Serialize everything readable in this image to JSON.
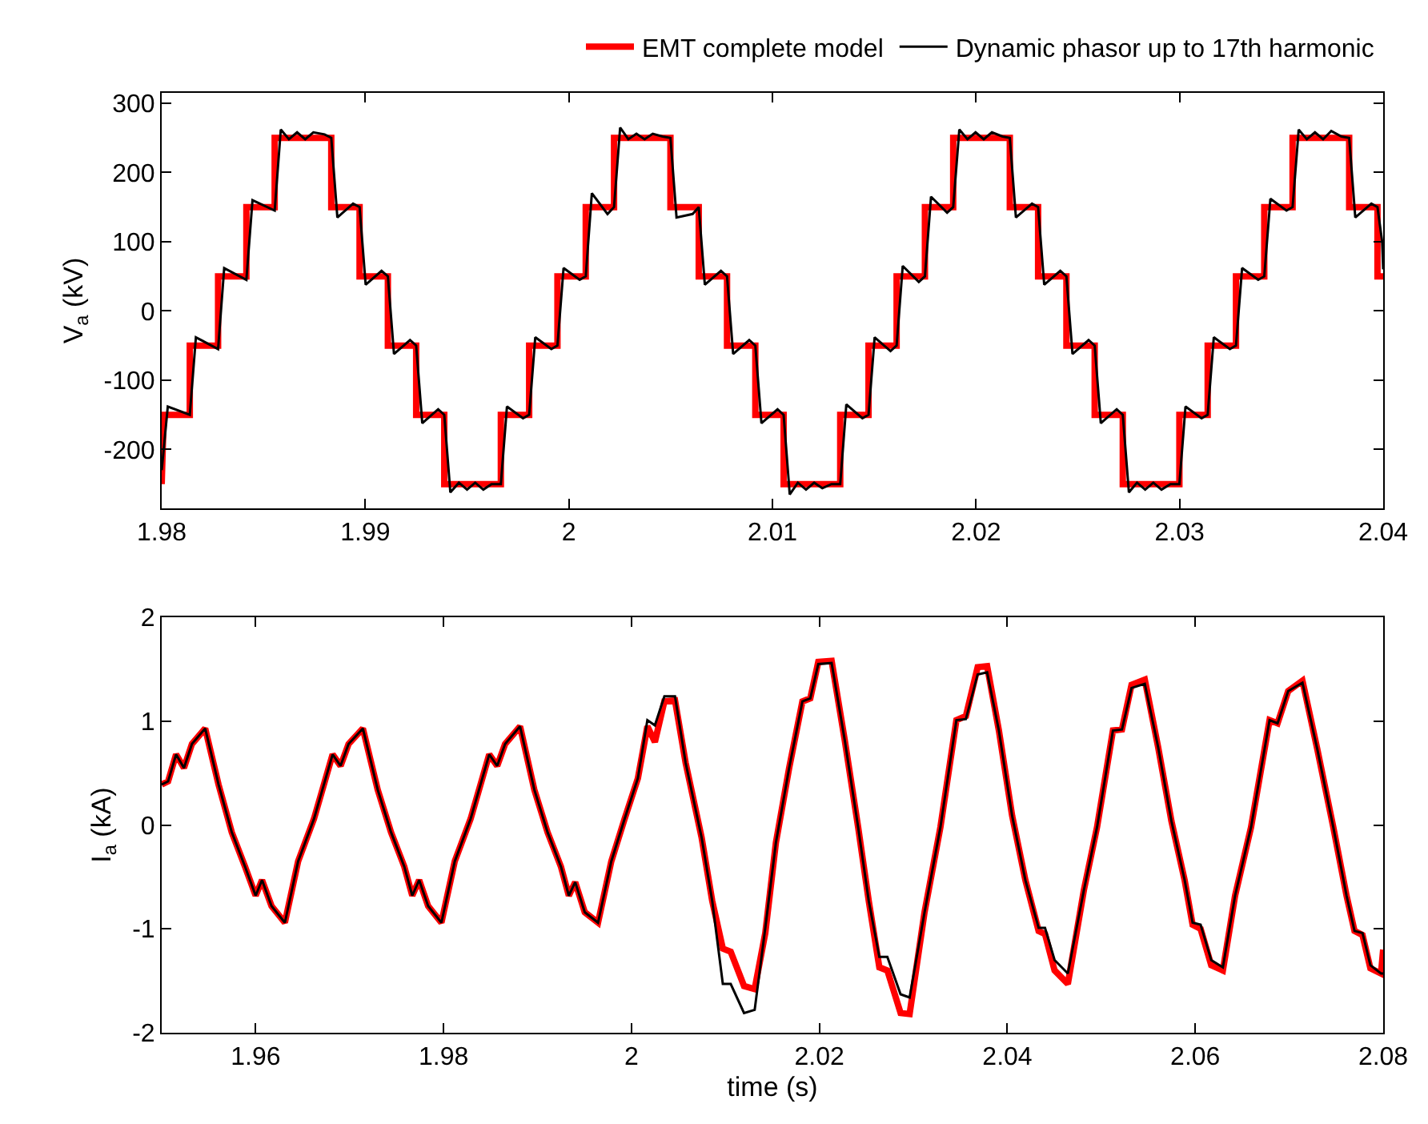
{
  "chart_data": [
    {
      "type": "line",
      "ylabel": "V$_{a}$ (kV)",
      "xlim": [
        1.98,
        2.04
      ],
      "xticks": [
        1.98,
        1.99,
        2,
        2.01,
        2.02,
        2.03,
        2.04
      ],
      "ylim": [
        -285,
        315
      ],
      "yticks": [
        -200,
        -100,
        0,
        100,
        200,
        300
      ],
      "legend": "top",
      "marker": "none",
      "line_style": "solid",
      "series": [
        {
          "name": "EMT complete model",
          "color": "#ff0000",
          "x": [
            1.98,
            1.9801,
            1.98138,
            1.98138,
            1.98277,
            1.98277,
            1.98416,
            1.98416,
            1.98555,
            1.98555,
            1.98833,
            1.98833,
            1.98972,
            1.98972,
            1.99111,
            1.99111,
            1.9925,
            1.9925,
            1.99388,
            1.99388,
            1.99666,
            1.99666,
            1.99805,
            1.99805,
            1.99944,
            1.99944,
            2.00083,
            2.00083,
            2.00222,
            2.00222,
            2.00499,
            2.00499,
            2.00638,
            2.00638,
            2.00777,
            2.00777,
            2.00916,
            2.00916,
            2.01055,
            2.01055,
            2.01333,
            2.01333,
            2.01472,
            2.01472,
            2.0161,
            2.0161,
            2.01749,
            2.01749,
            2.01888,
            2.01888,
            2.02166,
            2.02166,
            2.02305,
            2.02305,
            2.02444,
            2.02444,
            2.02583,
            2.02583,
            2.02721,
            2.02721,
            2.02999,
            2.02999,
            2.03138,
            2.03138,
            2.03277,
            2.03277,
            2.03416,
            2.03416,
            2.03555,
            2.03555,
            2.03833,
            2.03833,
            2.03972,
            2.03972,
            2.04
          ],
          "values": [
            -250,
            -150,
            -150,
            -50,
            -50,
            50,
            50,
            150,
            150,
            250,
            250,
            150,
            150,
            50,
            50,
            -50,
            -50,
            -150,
            -150,
            -250,
            -250,
            -150,
            -150,
            -50,
            -50,
            50,
            50,
            150,
            150,
            250,
            250,
            150,
            150,
            50,
            50,
            -50,
            -50,
            -150,
            -150,
            -250,
            -250,
            -150,
            -150,
            -50,
            -50,
            50,
            50,
            150,
            150,
            250,
            250,
            150,
            150,
            50,
            50,
            -50,
            -50,
            -150,
            -150,
            -250,
            -250,
            -150,
            -150,
            -50,
            -50,
            50,
            50,
            150,
            150,
            250,
            250,
            150,
            150,
            50,
            50
          ]
        },
        {
          "name": "Dynamic phasor up to 17th harmonic",
          "color": "#000000",
          "x": [
            1.98,
            1.9803,
            1.98138,
            1.98168,
            1.98277,
            1.98307,
            1.98416,
            1.98446,
            1.98555,
            1.98585,
            1.98625,
            1.98665,
            1.98705,
            1.98745,
            1.988,
            1.98833,
            1.98863,
            1.9894,
            1.98972,
            1.99002,
            1.9908,
            1.99111,
            1.99141,
            1.9922,
            1.9925,
            1.9928,
            1.99358,
            1.99388,
            1.99418,
            1.9946,
            1.995,
            1.9954,
            1.9958,
            1.9962,
            1.99666,
            1.99696,
            1.99775,
            1.99805,
            1.99835,
            1.99914,
            1.99944,
            1.99974,
            2.00053,
            2.00083,
            2.00113,
            2.0019,
            2.00222,
            2.00252,
            2.00292,
            2.00332,
            2.00372,
            2.00412,
            2.0046,
            2.00499,
            2.00529,
            2.00608,
            2.00638,
            2.00668,
            2.00747,
            2.00777,
            2.00807,
            2.00886,
            2.00916,
            2.00946,
            2.01025,
            2.01055,
            2.01085,
            2.01125,
            2.01165,
            2.01205,
            2.01245,
            2.0129,
            2.01333,
            2.01363,
            2.01442,
            2.01472,
            2.01502,
            2.0158,
            2.0161,
            2.0164,
            2.01719,
            2.01749,
            2.01779,
            2.01858,
            2.01888,
            2.01918,
            2.01958,
            2.01998,
            2.02038,
            2.02078,
            2.0213,
            2.02166,
            2.02196,
            2.02275,
            2.02305,
            2.02335,
            2.02414,
            2.02444,
            2.02474,
            2.02553,
            2.02583,
            2.02613,
            2.02691,
            2.02721,
            2.02751,
            2.02791,
            2.02831,
            2.02871,
            2.02911,
            2.02955,
            2.02999,
            2.03029,
            2.03108,
            2.03138,
            2.03168,
            2.03247,
            2.03277,
            2.03307,
            2.03386,
            2.03416,
            2.03446,
            2.03525,
            2.03555,
            2.03585,
            2.03625,
            2.03665,
            2.03705,
            2.03745,
            2.03795,
            2.03833,
            2.03863,
            2.03942,
            2.03972,
            2.03995,
            2.04
          ],
          "values": [
            -230,
            -138,
            -150,
            -38,
            -55,
            62,
            45,
            160,
            145,
            262,
            248,
            258,
            248,
            258,
            255,
            250,
            135,
            155,
            150,
            38,
            58,
            50,
            -62,
            -42,
            -50,
            -162,
            -142,
            -150,
            -262,
            -248,
            -258,
            -248,
            -258,
            -250,
            -250,
            -138,
            -155,
            -150,
            -38,
            -55,
            -50,
            62,
            45,
            50,
            170,
            140,
            150,
            265,
            248,
            256,
            248,
            256,
            252,
            250,
            135,
            140,
            150,
            38,
            58,
            50,
            -62,
            -42,
            -50,
            -162,
            -142,
            -150,
            -265,
            -248,
            -258,
            -248,
            -256,
            -250,
            -250,
            -135,
            -155,
            -150,
            -38,
            -58,
            -50,
            65,
            42,
            50,
            165,
            142,
            150,
            262,
            248,
            258,
            248,
            258,
            252,
            250,
            135,
            155,
            150,
            38,
            58,
            50,
            -62,
            -42,
            -50,
            -162,
            -142,
            -150,
            -262,
            -248,
            -258,
            -248,
            -258,
            -250,
            -250,
            -138,
            -155,
            -150,
            -38,
            -55,
            -50,
            62,
            45,
            50,
            162,
            145,
            150,
            262,
            248,
            258,
            248,
            260,
            252,
            250,
            135,
            155,
            150,
            100,
            60
          ]
        }
      ]
    },
    {
      "type": "line",
      "xlabel": "time (s)",
      "ylabel": "I$_{a}$ (kA)",
      "xlim": [
        1.95,
        2.08
      ],
      "xticks": [
        1.96,
        1.98,
        2,
        2.02,
        2.04,
        2.06,
        2.08
      ],
      "ylim": [
        -2,
        2
      ],
      "yticks": [
        -2,
        -1,
        0,
        1,
        2
      ],
      "legend": false,
      "marker": "none",
      "line_style": "solid",
      "x": [
        1.95,
        1.95068,
        1.95153,
        1.95237,
        1.95322,
        1.95463,
        1.95605,
        1.95746,
        1.95887,
        1.96,
        1.96068,
        1.96169,
        1.96311,
        1.96452,
        1.96621,
        1.96819,
        1.96904,
        1.96989,
        1.97141,
        1.97299,
        1.97441,
        1.97582,
        1.97667,
        1.9774,
        1.97836,
        1.97977,
        1.98119,
        1.98288,
        1.98486,
        1.98571,
        1.98655,
        1.98814,
        1.98966,
        1.99107,
        1.99249,
        1.99333,
        1.99401,
        1.99503,
        1.99644,
        1.99785,
        1.99927,
        2.00068,
        2.00169,
        2.00249,
        2.0035,
        2.00463,
        2.00576,
        2.00746,
        2.00859,
        2.00972,
        2.01056,
        2.01198,
        2.01311,
        2.01424,
        2.01537,
        2.01678,
        2.01819,
        2.01903,
        2.01988,
        2.0213,
        2.02271,
        2.02412,
        2.02525,
        2.02638,
        2.02723,
        2.02864,
        2.0296,
        2.03119,
        2.03288,
        2.03458,
        2.03559,
        2.03684,
        2.03785,
        2.0391,
        2.04051,
        2.04192,
        2.04333,
        2.04401,
        2.04503,
        2.04644,
        2.04814,
        2.04955,
        2.05124,
        2.0522,
        2.05322,
        2.05463,
        2.05605,
        2.05746,
        2.05887,
        2.05972,
        2.06057,
        2.0617,
        2.06294,
        2.06424,
        2.06594,
        2.06791,
        2.06876,
        2.06989,
        2.07141,
        2.07299,
        2.07469,
        2.0761,
        2.07695,
        2.0778,
        2.07864,
        2.07977,
        2.08
      ],
      "series": [
        {
          "color": "#ff0000",
          "values": [
            0.39,
            0.42,
            0.68,
            0.55,
            0.78,
            0.93,
            0.39,
            -0.07,
            -0.4,
            -0.68,
            -0.53,
            -0.78,
            -0.94,
            -0.35,
            0.06,
            0.68,
            0.57,
            0.78,
            0.93,
            0.34,
            -0.07,
            -0.4,
            -0.68,
            -0.53,
            -0.78,
            -0.94,
            -0.35,
            0.06,
            0.68,
            0.57,
            0.78,
            0.95,
            0.34,
            -0.07,
            -0.4,
            -0.68,
            -0.55,
            -0.84,
            -0.94,
            -0.35,
            0.06,
            0.45,
            0.95,
            0.8,
            1.19,
            1.2,
            0.6,
            -0.12,
            -0.73,
            -1.19,
            -1.22,
            -1.55,
            -1.58,
            -1.04,
            -0.17,
            0.55,
            1.19,
            1.22,
            1.57,
            1.58,
            0.81,
            -0.02,
            -0.73,
            -1.37,
            -1.4,
            -1.81,
            -1.82,
            -0.84,
            -0.02,
            1.01,
            1.05,
            1.52,
            1.53,
            0.91,
            0.09,
            -0.53,
            -1.02,
            -1.05,
            -1.4,
            -1.53,
            -0.63,
            -0.02,
            0.91,
            0.92,
            1.35,
            1.4,
            0.75,
            0.04,
            -0.53,
            -0.96,
            -1.0,
            -1.35,
            -1.4,
            -0.68,
            -0.02,
            1.01,
            0.98,
            1.29,
            1.39,
            0.73,
            -0.02,
            -0.68,
            -1.02,
            -1.06,
            -1.38,
            -1.43,
            -1.2
          ]
        },
        {
          "color": "#000000",
          "values": [
            0.39,
            0.42,
            0.68,
            0.55,
            0.78,
            0.93,
            0.39,
            -0.07,
            -0.4,
            -0.68,
            -0.53,
            -0.78,
            -0.94,
            -0.35,
            0.06,
            0.68,
            0.57,
            0.78,
            0.93,
            0.34,
            -0.07,
            -0.4,
            -0.68,
            -0.53,
            -0.78,
            -0.94,
            -0.35,
            0.06,
            0.68,
            0.57,
            0.78,
            0.95,
            0.34,
            -0.07,
            -0.4,
            -0.68,
            -0.55,
            -0.84,
            -0.94,
            -0.35,
            0.06,
            0.45,
            1.01,
            0.96,
            1.24,
            1.24,
            0.6,
            -0.12,
            -0.73,
            -1.53,
            -1.53,
            -1.81,
            -1.78,
            -0.99,
            -0.17,
            0.55,
            1.19,
            1.22,
            1.55,
            1.56,
            0.81,
            -0.02,
            -0.73,
            -1.27,
            -1.27,
            -1.63,
            -1.66,
            -0.84,
            -0.02,
            1.01,
            1.02,
            1.45,
            1.47,
            0.91,
            0.09,
            -0.53,
            -0.99,
            -0.99,
            -1.3,
            -1.43,
            -0.63,
            -0.02,
            0.91,
            0.92,
            1.32,
            1.36,
            0.75,
            0.04,
            -0.53,
            -0.94,
            -0.96,
            -1.3,
            -1.37,
            -0.68,
            -0.02,
            1.01,
            0.98,
            1.29,
            1.37,
            0.73,
            -0.02,
            -0.68,
            -1.02,
            -1.04,
            -1.35,
            -1.43,
            -1.43
          ]
        }
      ]
    }
  ]
}
